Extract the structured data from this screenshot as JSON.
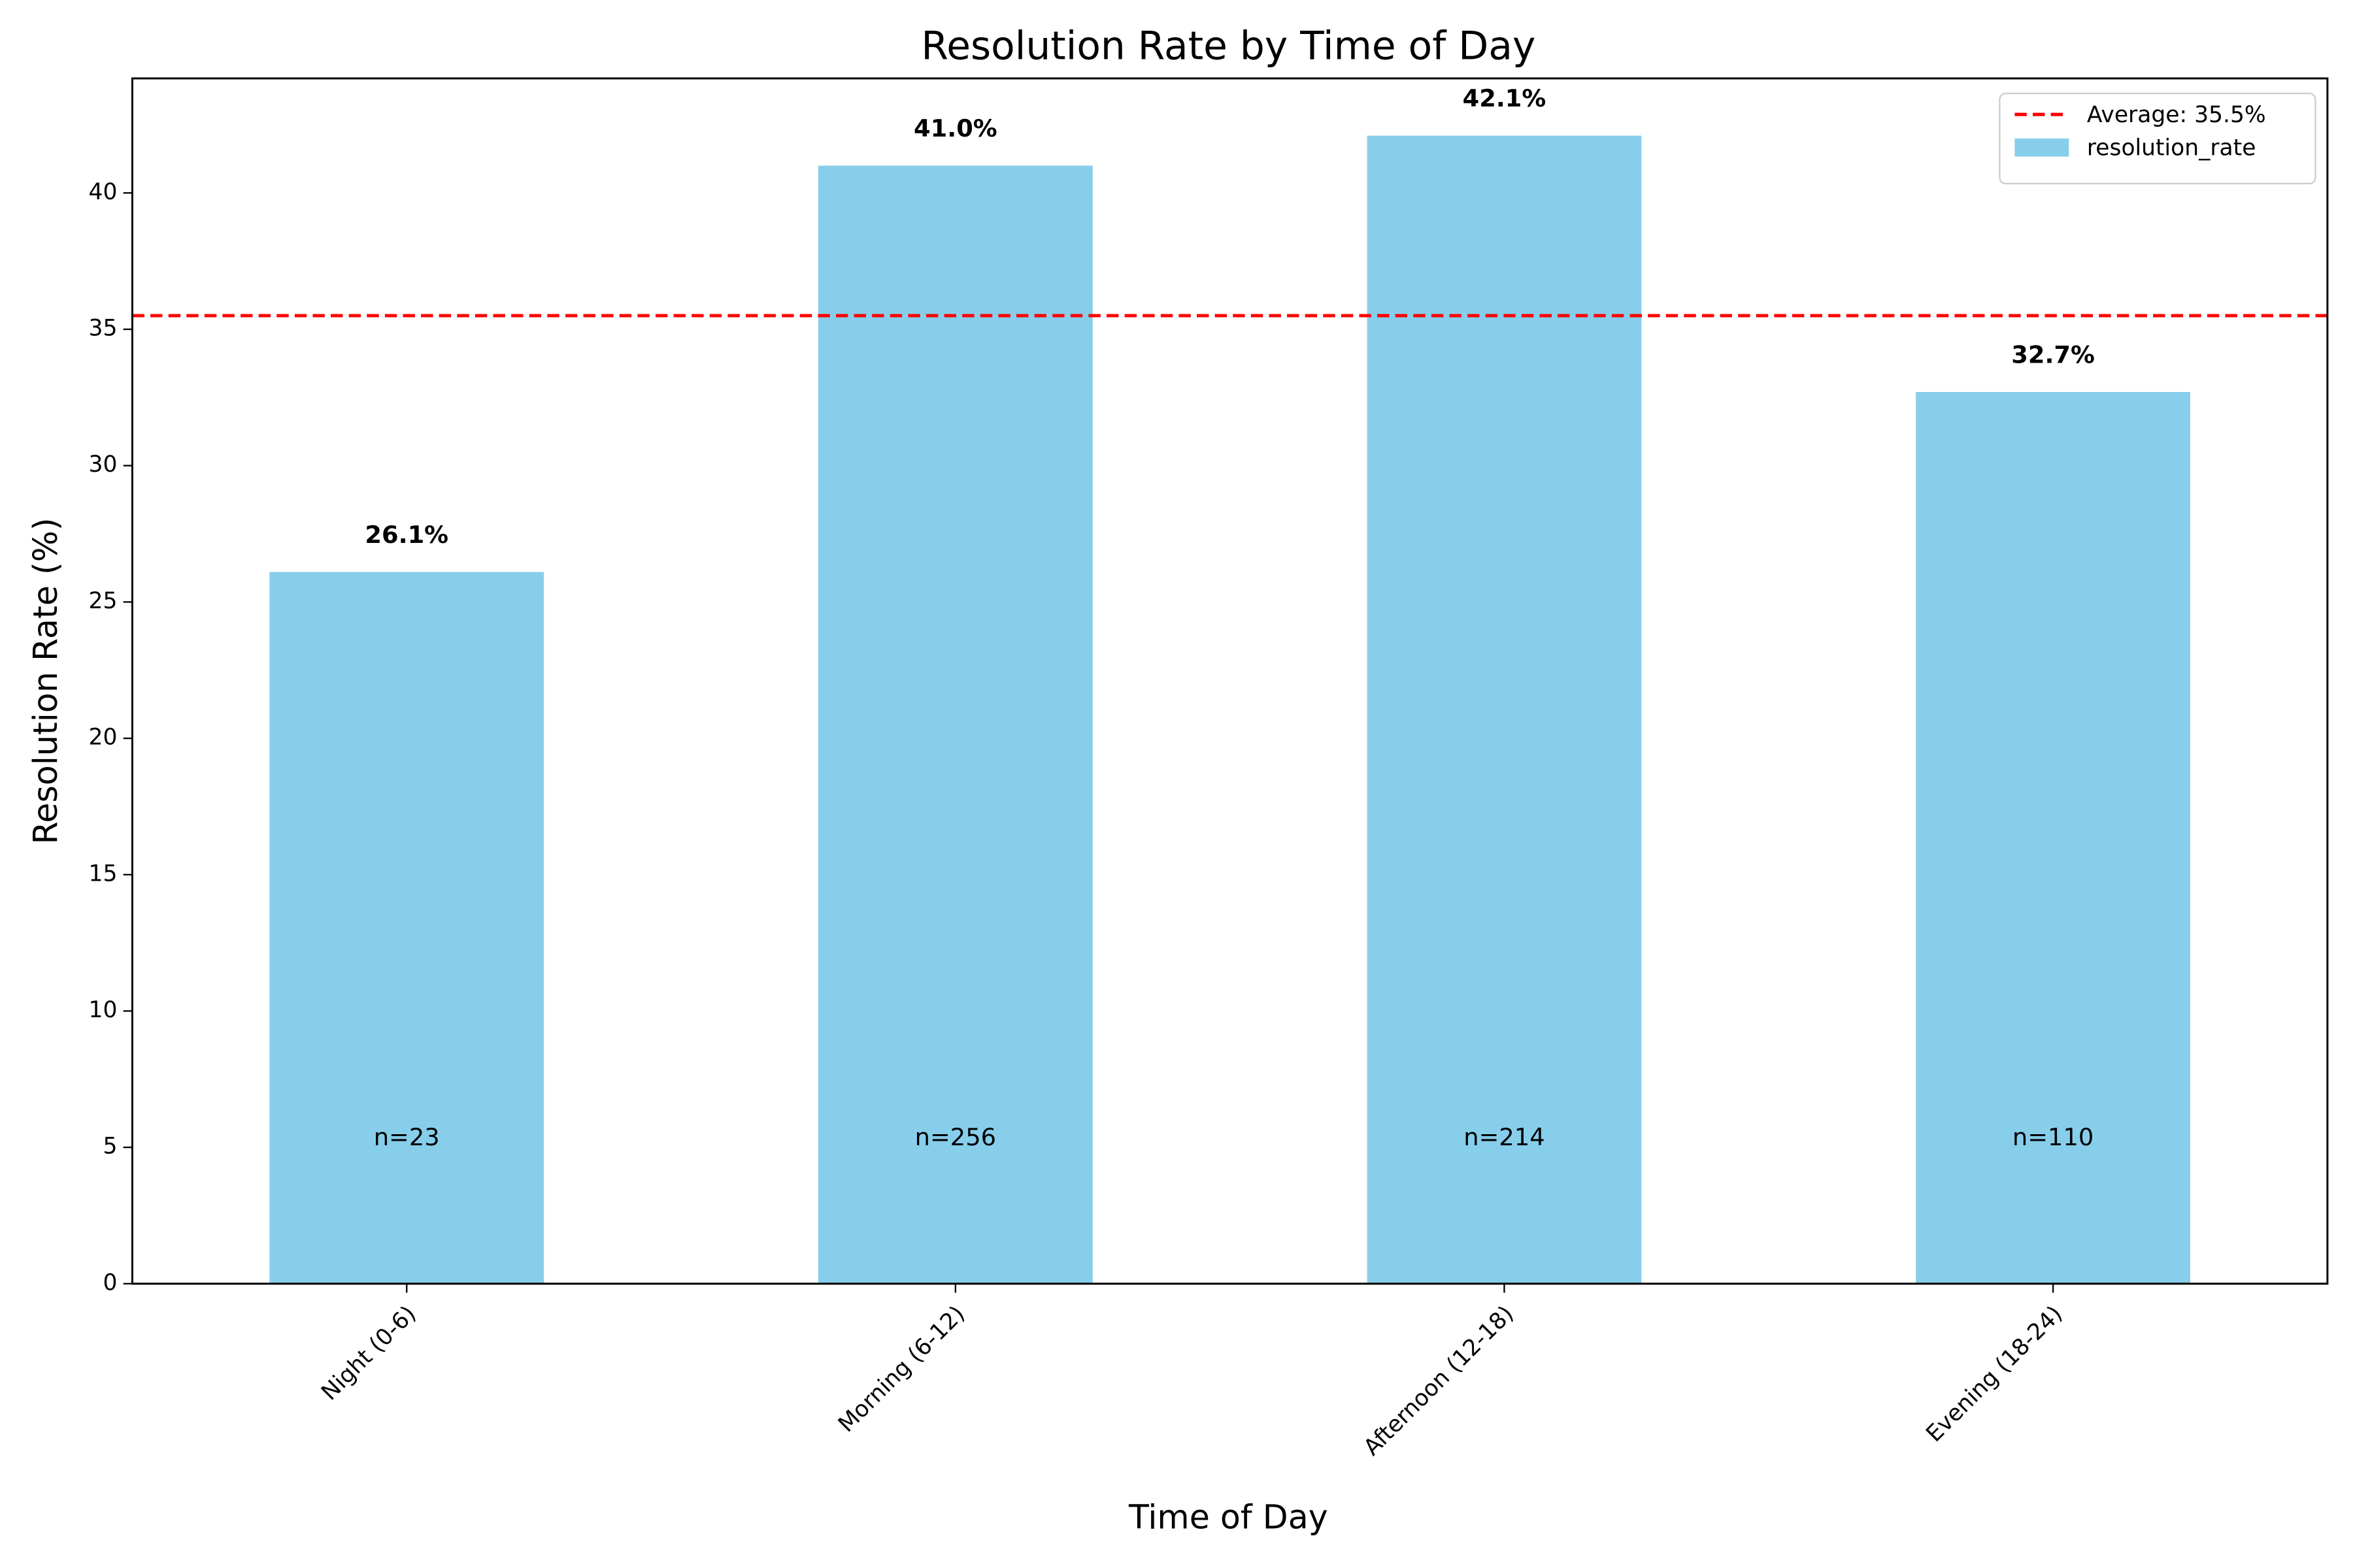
{
  "chart_data": {
    "type": "bar",
    "title": "Resolution Rate by Time of Day",
    "xlabel": "Time of Day",
    "ylabel": "Resolution Rate (%)",
    "categories": [
      "Night (0-6)",
      "Morning (6-12)",
      "Afternoon (12-18)",
      "Evening (18-24)"
    ],
    "series": [
      {
        "name": "resolution_rate",
        "color": "#87ceeb",
        "values": [
          26.1,
          41.0,
          42.1,
          32.7
        ],
        "value_labels": [
          "26.1%",
          "41.0%",
          "42.1%",
          "32.7%"
        ]
      }
    ],
    "annotations": [
      "n=23",
      "n=256",
      "n=214",
      "n=110"
    ],
    "reference_line": {
      "name": "Average: 35.5%",
      "value": 35.5,
      "color": "#ff0000"
    },
    "ylim": [
      0,
      44.2
    ],
    "yticks": [
      0,
      5,
      10,
      15,
      20,
      25,
      30,
      35,
      40
    ],
    "legend": "upper right"
  }
}
